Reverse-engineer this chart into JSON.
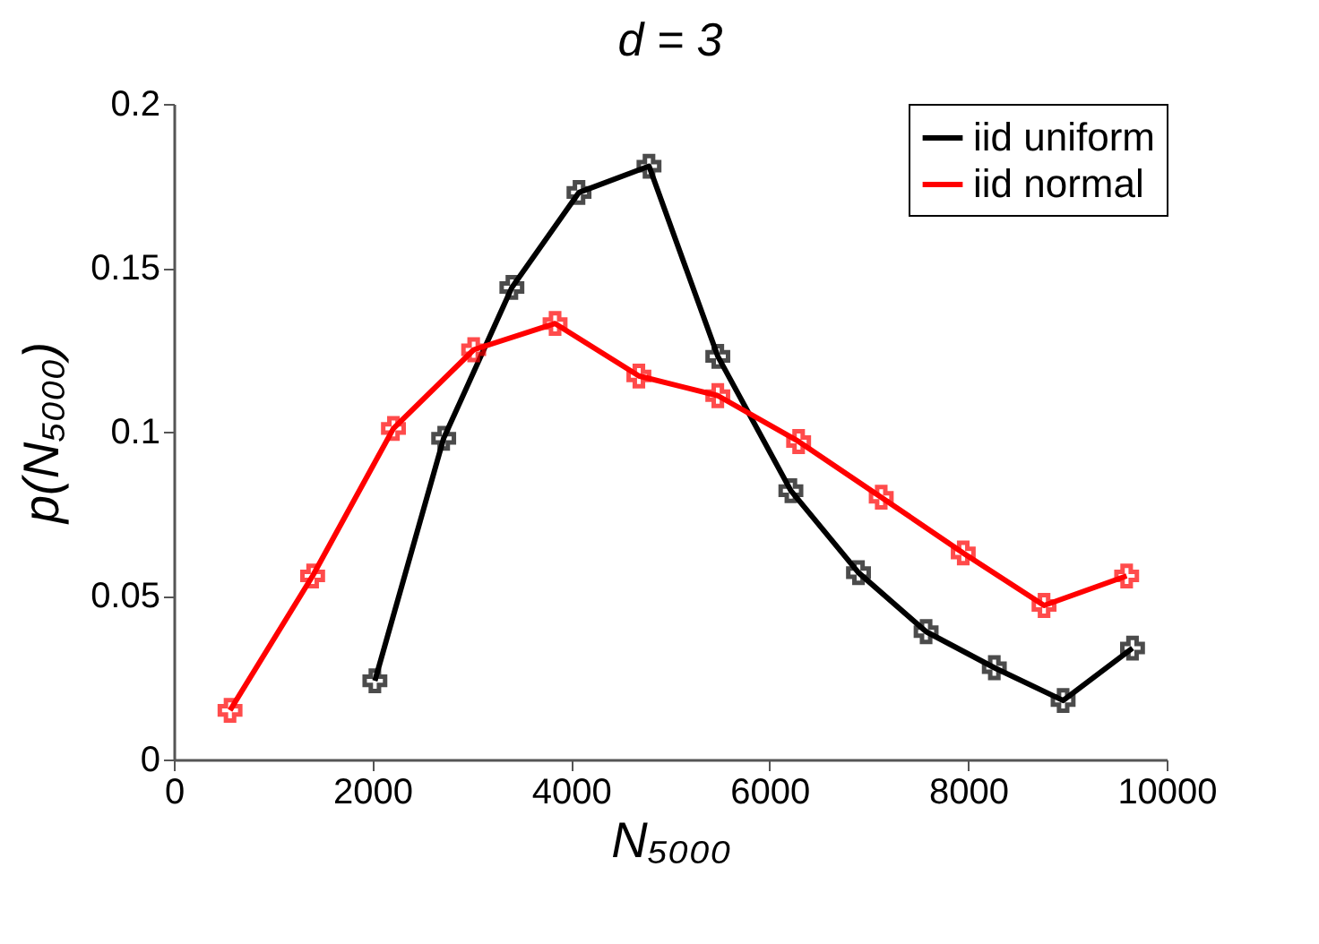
{
  "chart_data": {
    "type": "line",
    "title": "d = 3",
    "xlabel": "N₅₀₀₀",
    "ylabel": "p(N₅₀₀₀)",
    "xlim": [
      0,
      10000
    ],
    "xticks": [
      0,
      2000,
      4000,
      6000,
      8000,
      10000
    ],
    "ylim": [
      0,
      0.2
    ],
    "yticks": [
      0,
      0.05,
      0.1,
      0.15,
      0.2
    ],
    "grid": false,
    "legend": "top right",
    "marker": "cross",
    "line_style": "solid",
    "series": [
      {
        "name": "iid uniform",
        "color": "#000000",
        "x": [
          2025,
          2718,
          3405,
          4081,
          4786,
          5479,
          6215,
          6896,
          7577,
          8264,
          8957,
          9656
        ],
        "values": [
          0.024,
          0.098,
          0.144,
          0.173,
          0.181,
          0.123,
          0.082,
          0.057,
          0.039,
          0.028,
          0.018,
          0.034
        ]
      },
      {
        "name": "iid normal",
        "color": "#ff0000",
        "x": [
          566,
          1398,
          2212,
          3020,
          3840,
          4684,
          5479,
          6293,
          7125,
          7951,
          8765,
          9597
        ],
        "values": [
          0.015,
          0.056,
          0.101,
          0.125,
          0.133,
          0.117,
          0.111,
          0.097,
          0.08,
          0.063,
          0.047,
          0.056
        ]
      }
    ]
  }
}
